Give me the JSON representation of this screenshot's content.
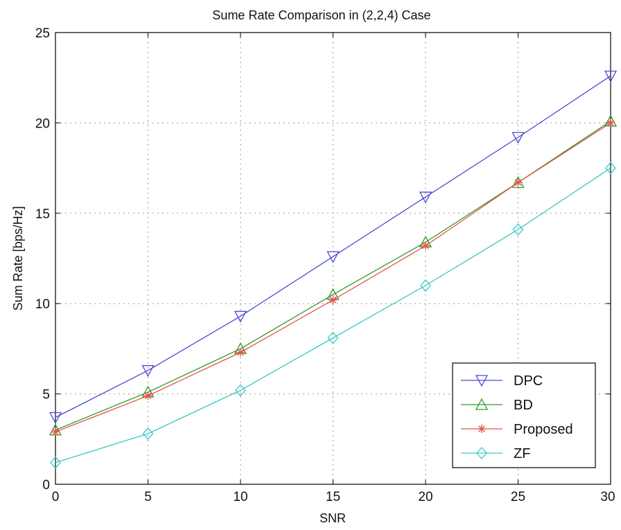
{
  "chart_data": {
    "type": "line",
    "title": "Sume Rate Comparison in (2,2,4) Case",
    "xlabel": "SNR",
    "ylabel": "Sum Rate [bps/Hz]",
    "xlim": [
      0,
      30
    ],
    "ylim": [
      0,
      25
    ],
    "xticks": [
      0,
      5,
      10,
      15,
      20,
      25,
      30
    ],
    "yticks": [
      0,
      5,
      10,
      15,
      20,
      25
    ],
    "x": [
      0,
      5,
      10,
      15,
      20,
      25,
      30
    ],
    "grid": true,
    "legend_position": "bottom-right",
    "series": [
      {
        "name": "DPC",
        "values": [
          3.7,
          6.3,
          9.3,
          12.6,
          15.9,
          19.2,
          22.6
        ],
        "color": "#4a4ad6",
        "marker": "triangle-down"
      },
      {
        "name": "BD",
        "values": [
          3.0,
          5.1,
          7.5,
          10.5,
          13.4,
          16.7,
          20.1
        ],
        "color": "#2e9a2e",
        "marker": "triangle-up"
      },
      {
        "name": "Proposed",
        "values": [
          2.9,
          4.9,
          7.3,
          10.2,
          13.2,
          16.7,
          20.0
        ],
        "color": "#e8524a",
        "marker": "asterisk"
      },
      {
        "name": "ZF",
        "values": [
          1.2,
          2.8,
          5.2,
          8.1,
          11.0,
          14.1,
          17.5
        ],
        "color": "#3cc6c6",
        "marker": "diamond"
      }
    ]
  }
}
